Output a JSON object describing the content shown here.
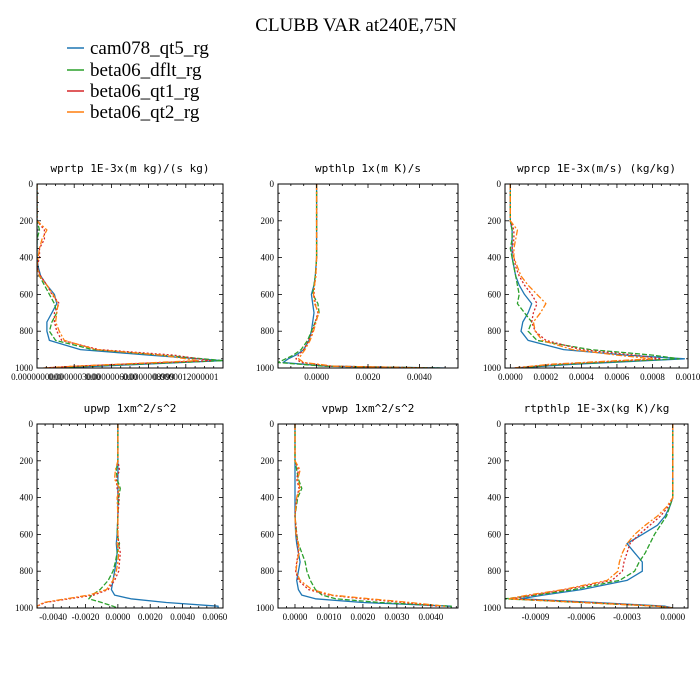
{
  "figure": {
    "title": "CLUBB VAR at240E,75N"
  },
  "legend": [
    {
      "label": "cam078_qt5_rg",
      "color": "#1f77b4"
    },
    {
      "label": "beta06_dflt_rg",
      "color": "#2ca02c"
    },
    {
      "label": "beta06_qt1_rg",
      "color": "#d62728"
    },
    {
      "label": "beta06_qt2_rg",
      "color": "#ff7f0e"
    }
  ],
  "chart_data": [
    {
      "type": "line",
      "title": "wprtp  1E-3x(m kg)/(s kg)",
      "xlim": [
        0,
        1.5e-06
      ],
      "xticks": [
        0,
        3e-07,
        6e-07,
        9e-07,
        1.2e-06
      ],
      "xtick_labels": [
        "0.0000000000",
        "0.0000003000",
        "0.0000006000",
        "0.0000008999",
        "0.0000012000001"
      ],
      "ylim": [
        0,
        1000
      ],
      "yticks": [
        0,
        200,
        400,
        600,
        800,
        1000
      ],
      "ytick_labels": [
        "0",
        "200",
        "400",
        "600",
        "800",
        "1000"
      ],
      "y": [
        0,
        100,
        200,
        250,
        300,
        350,
        400,
        450,
        500,
        550,
        600,
        650,
        700,
        750,
        800,
        850,
        900,
        930,
        960,
        990,
        1000
      ],
      "series": [
        {
          "name": "cam078_qt5_rg",
          "values": [
            0,
            0,
            0,
            0,
            0,
            0,
            0,
            1e-08,
            3e-08,
            8e-08,
            1.4e-07,
            1.6e-07,
            1.2e-07,
            8e-08,
            8e-08,
            1e-07,
            3.5e-07,
            9e-07,
            1.5e-06,
            5e-07,
            1e-07
          ]
        },
        {
          "name": "beta06_dflt_rg",
          "values": [
            0,
            0,
            0,
            2e-08,
            0,
            0,
            0,
            0,
            2e-08,
            6e-08,
            1e-07,
            1.4e-07,
            1.6e-07,
            1.2e-07,
            1e-07,
            1.5e-07,
            4.5e-07,
            1e-06,
            1.5e-06,
            4e-07,
            1e-07
          ]
        },
        {
          "name": "beta06_qt1_rg",
          "values": [
            0,
            0,
            0,
            6e-08,
            6e-08,
            2e-08,
            2e-08,
            0,
            3e-08,
            8e-08,
            1.2e-07,
            1.8e-07,
            1.4e-07,
            1.4e-07,
            1.6e-07,
            2e-07,
            5e-07,
            1.1e-06,
            1.4e-06,
            3e-07,
            5e-08
          ]
        },
        {
          "name": "beta06_qt2_rg",
          "values": [
            0,
            0,
            0,
            8e-08,
            4e-08,
            2e-08,
            1e-08,
            0,
            2e-08,
            8e-08,
            1.3e-07,
            1.7e-07,
            1.6e-07,
            1.5e-07,
            1.8e-07,
            2.2e-07,
            4.8e-07,
            1e-06,
            1.3e-06,
            3e-07,
            5e-08
          ]
        }
      ]
    },
    {
      "type": "line",
      "title": "wpthlp  1x(m K)/s",
      "xlim": [
        -0.0015,
        0.0055
      ],
      "xticks": [
        0,
        0.002,
        0.004
      ],
      "xtick_labels": [
        "0.0000",
        "0.0020",
        "0.0040"
      ],
      "ylim": [
        0,
        1000
      ],
      "yticks": [
        0,
        200,
        400,
        600,
        800,
        1000
      ],
      "ytick_labels": [
        "0",
        "200",
        "400",
        "600",
        "800",
        "1000"
      ],
      "y": [
        0,
        100,
        200,
        300,
        400,
        500,
        550,
        600,
        650,
        700,
        750,
        800,
        850,
        900,
        930,
        950,
        970,
        990,
        1000
      ],
      "series": [
        {
          "name": "cam078_qt5_rg",
          "values": [
            0,
            0,
            0,
            0,
            0,
            -5e-05,
            -0.0001,
            -0.0002,
            -0.00015,
            -0.0001,
            -0.00015,
            -0.0002,
            -0.0003,
            -0.0005,
            -0.0008,
            -0.0011,
            -0.0013,
            0.0004,
            0.005
          ]
        },
        {
          "name": "beta06_dflt_rg",
          "values": [
            0,
            0,
            0,
            0,
            0,
            -5e-05,
            -0.0001,
            -0.00015,
            5e-05,
            0.0001,
            -5e-05,
            -0.0002,
            -0.00035,
            -0.0006,
            -0.0009,
            -0.0012,
            -0.0015,
            0.0003,
            0.0048
          ]
        },
        {
          "name": "beta06_qt1_rg",
          "values": [
            0,
            0,
            0,
            0,
            0,
            -3e-05,
            -8e-05,
            -0.0001,
            -5e-05,
            5e-05,
            -5e-05,
            -0.00015,
            -0.0003,
            -0.0005,
            -0.0007,
            -0.0008,
            -0.0006,
            0.0006,
            0.0045
          ]
        },
        {
          "name": "beta06_qt2_rg",
          "values": [
            0,
            0,
            0,
            0,
            0,
            -3e-05,
            -8e-05,
            -0.00012,
            -8e-05,
            8e-05,
            -2e-05,
            -0.00012,
            -0.00025,
            -0.00045,
            -0.0006,
            -0.0007,
            -0.0005,
            0.0007,
            0.0044
          ]
        }
      ]
    },
    {
      "type": "line",
      "title": "wprcp  1E-3x(m/s) (kg/kg)",
      "xlim": [
        -3e-05,
        0.001
      ],
      "xticks": [
        0,
        0.0002,
        0.0004,
        0.0006,
        0.0008,
        0.001
      ],
      "xtick_labels": [
        "0.0000",
        "0.0002",
        "0.0004",
        "0.0006",
        "0.0008",
        "0.0010"
      ],
      "ylim": [
        0,
        1000
      ],
      "yticks": [
        0,
        200,
        400,
        600,
        800,
        1000
      ],
      "ytick_labels": [
        "0",
        "200",
        "400",
        "600",
        "800",
        "1000"
      ],
      "y": [
        0,
        100,
        200,
        250,
        300,
        350,
        400,
        450,
        500,
        550,
        600,
        650,
        700,
        750,
        800,
        850,
        900,
        930,
        950,
        980,
        1000
      ],
      "series": [
        {
          "name": "cam078_qt5_rg",
          "values": [
            0,
            0,
            0,
            1e-05,
            1e-05,
            1e-05,
            1e-05,
            2e-05,
            3e-05,
            5e-05,
            8e-05,
            0.00012,
            0.0001,
            7e-05,
            6e-05,
            0.0001,
            0.0003,
            0.00065,
            0.00098,
            0.00035,
            3e-05
          ]
        },
        {
          "name": "beta06_dflt_rg",
          "values": [
            0,
            0,
            0,
            1e-05,
            1e-05,
            0,
            1e-05,
            2e-05,
            3e-05,
            4e-05,
            5e-05,
            4e-05,
            8e-05,
            0.00012,
            0.0001,
            0.00015,
            0.00045,
            0.0008,
            0.00095,
            0.0003,
            2e-05
          ]
        },
        {
          "name": "beta06_qt1_rg",
          "values": [
            0,
            0,
            0,
            2e-05,
            2e-05,
            1e-05,
            2e-05,
            3e-05,
            5e-05,
            8e-05,
            0.00012,
            0.00015,
            0.00013,
            0.00012,
            0.00014,
            0.0002,
            0.0004,
            0.0007,
            0.00085,
            0.00025,
            2e-05
          ]
        },
        {
          "name": "beta06_qt2_rg",
          "values": [
            0,
            0,
            0,
            4e-05,
            3e-05,
            2e-05,
            2e-05,
            4e-05,
            6e-05,
            0.0001,
            0.00015,
            0.0002,
            0.00017,
            0.00013,
            0.00014,
            0.00018,
            0.00035,
            0.0006,
            0.0008,
            0.00022,
            2e-05
          ]
        }
      ]
    },
    {
      "type": "line",
      "title": "upwp  1xm^2/s^2",
      "xlim": [
        -0.005,
        0.0065
      ],
      "xticks": [
        -0.004,
        -0.002,
        0,
        0.002,
        0.004,
        0.006
      ],
      "xtick_labels": [
        "-0.0040",
        "-0.0020",
        "0.0000",
        "0.0020",
        "0.0040",
        "0.0060"
      ],
      "ylim": [
        0,
        1000
      ],
      "yticks": [
        0,
        200,
        400,
        600,
        800,
        1000
      ],
      "ytick_labels": [
        "0",
        "200",
        "400",
        "600",
        "800",
        "1000"
      ],
      "y": [
        0,
        100,
        200,
        250,
        300,
        350,
        400,
        500,
        600,
        650,
        700,
        750,
        800,
        850,
        900,
        930,
        950,
        970,
        990,
        1000
      ],
      "series": [
        {
          "name": "cam078_qt5_rg",
          "values": [
            0,
            0,
            0,
            0,
            0,
            0,
            0,
            0,
            -5e-05,
            -0.0001,
            -5e-05,
            -0.0001,
            -0.0002,
            -0.0003,
            -0.0004,
            -0.0002,
            0.0008,
            0.003,
            0.0062,
            0.0062
          ]
        },
        {
          "name": "beta06_dflt_rg",
          "values": [
            0,
            0,
            0,
            -0.0001,
            -5e-05,
            0.00015,
            5e-05,
            0,
            -5e-05,
            0.0001,
            -5e-05,
            -0.00015,
            -0.0003,
            -0.0006,
            -0.0011,
            -0.0016,
            -0.0018,
            -0.001,
            -0.0003,
            0
          ]
        },
        {
          "name": "beta06_qt1_rg",
          "values": [
            0,
            0,
            0,
            0.0001,
            -0.0001,
            -5e-05,
            8e-05,
            0,
            0,
            5e-05,
            0.00015,
            0.0001,
            5e-05,
            -0.0002,
            -0.0006,
            -0.0015,
            -0.003,
            -0.0045,
            -0.005,
            -0.005
          ]
        },
        {
          "name": "beta06_qt2_rg",
          "values": [
            0,
            0,
            0,
            -0.00015,
            -0.0002,
            0.0001,
            -5e-05,
            0,
            0,
            -5e-05,
            5e-05,
            0,
            -0.0001,
            -0.0003,
            -0.0007,
            -0.0018,
            -0.0032,
            -0.0046,
            -0.005,
            -0.005
          ]
        }
      ]
    },
    {
      "type": "line",
      "title": "vpwp  1xm^2/s^2",
      "xlim": [
        -0.0005,
        0.0048
      ],
      "xticks": [
        0,
        0.001,
        0.002,
        0.003,
        0.004
      ],
      "xtick_labels": [
        "0.0000",
        "0.0010",
        "0.0020",
        "0.0030",
        "0.0040"
      ],
      "ylim": [
        0,
        1000
      ],
      "yticks": [
        0,
        200,
        400,
        600,
        800,
        1000
      ],
      "ytick_labels": [
        "0",
        "200",
        "400",
        "600",
        "800",
        "1000"
      ],
      "y": [
        0,
        100,
        200,
        250,
        300,
        350,
        400,
        500,
        600,
        650,
        700,
        750,
        800,
        850,
        900,
        930,
        950,
        970,
        990,
        1000
      ],
      "series": [
        {
          "name": "cam078_qt5_rg",
          "values": [
            0,
            0,
            0,
            0,
            0,
            0,
            0,
            0,
            2e-05,
            5e-05,
            0.0001,
            0.00015,
            0.0001,
            5e-05,
            0.0001,
            0.0002,
            0.0006,
            0.002,
            0.0046,
            0.0046
          ]
        },
        {
          "name": "beta06_dflt_rg",
          "values": [
            0,
            0,
            0,
            5e-05,
            0.0001,
            0.0002,
            8e-05,
            0,
            5e-05,
            0.0001,
            0.0002,
            0.0003,
            0.00035,
            0.00045,
            0.0006,
            0.0008,
            0.0012,
            0.0025,
            0.0046,
            0.0046
          ]
        },
        {
          "name": "beta06_qt1_rg",
          "values": [
            0,
            0,
            0,
            0.0001,
            5e-05,
            0.00012,
            5e-05,
            0,
            5e-05,
            8e-05,
            0.0001,
            5e-05,
            2e-05,
            0.0001,
            0.0004,
            0.001,
            0.002,
            0.0032,
            0.0042,
            0.0042
          ]
        },
        {
          "name": "beta06_qt2_rg",
          "values": [
            0,
            0,
            0,
            0.00015,
            8e-05,
            0.00015,
            5e-05,
            0,
            3e-05,
            0.0001,
            0.00012,
            6e-05,
            3e-05,
            0.00015,
            0.0005,
            0.0011,
            0.0022,
            0.0034,
            0.0044,
            0.0044
          ]
        }
      ]
    },
    {
      "type": "line",
      "title": "rtpthlp  1E-3x(kg K)/kg",
      "xlim": [
        -0.0011,
        0.0001
      ],
      "xticks": [
        -0.0009,
        -0.0006,
        -0.0003,
        0
      ],
      "xtick_labels": [
        "-0.0009",
        "-0.0006",
        "-0.0003",
        "0.0000"
      ],
      "ylim": [
        0,
        1000
      ],
      "yticks": [
        0,
        200,
        400,
        600,
        800,
        1000
      ],
      "ytick_labels": [
        "0",
        "200",
        "400",
        "600",
        "800",
        "1000"
      ],
      "y": [
        0,
        100,
        200,
        300,
        400,
        450,
        500,
        550,
        600,
        650,
        700,
        750,
        800,
        850,
        900,
        930,
        950,
        970,
        990,
        1000
      ],
      "series": [
        {
          "name": "cam078_qt5_rg",
          "values": [
            0,
            0,
            0,
            0,
            0,
            -2e-05,
            -5e-05,
            -0.0001,
            -0.0002,
            -0.0003,
            -0.00025,
            -0.0002,
            -0.0002,
            -0.0003,
            -0.0006,
            -0.00085,
            -0.001,
            -0.0005,
            -5e-05,
            0
          ]
        },
        {
          "name": "beta06_dflt_rg",
          "values": [
            0,
            0,
            0,
            0,
            0,
            -2e-05,
            -4e-05,
            -8e-05,
            -0.00012,
            -0.00015,
            -0.00018,
            -0.00022,
            -0.00025,
            -0.00035,
            -0.00065,
            -0.0009,
            -0.0011,
            -0.0006,
            -0.0001,
            0
          ]
        },
        {
          "name": "beta06_qt1_rg",
          "values": [
            0,
            0,
            0,
            0,
            0,
            -3e-05,
            -8e-05,
            -0.00015,
            -0.00022,
            -0.00028,
            -0.0003,
            -0.00032,
            -0.00033,
            -0.0004,
            -0.0007,
            -0.00092,
            -0.00105,
            -0.00055,
            -8e-05,
            0
          ]
        },
        {
          "name": "beta06_qt2_rg",
          "values": [
            0,
            0,
            0,
            0,
            0,
            -4e-05,
            -0.0001,
            -0.00018,
            -0.00025,
            -0.0003,
            -0.00033,
            -0.00035,
            -0.00036,
            -0.00043,
            -0.00072,
            -0.00095,
            -0.00108,
            -0.0006,
            -0.0001,
            0
          ]
        }
      ]
    }
  ]
}
